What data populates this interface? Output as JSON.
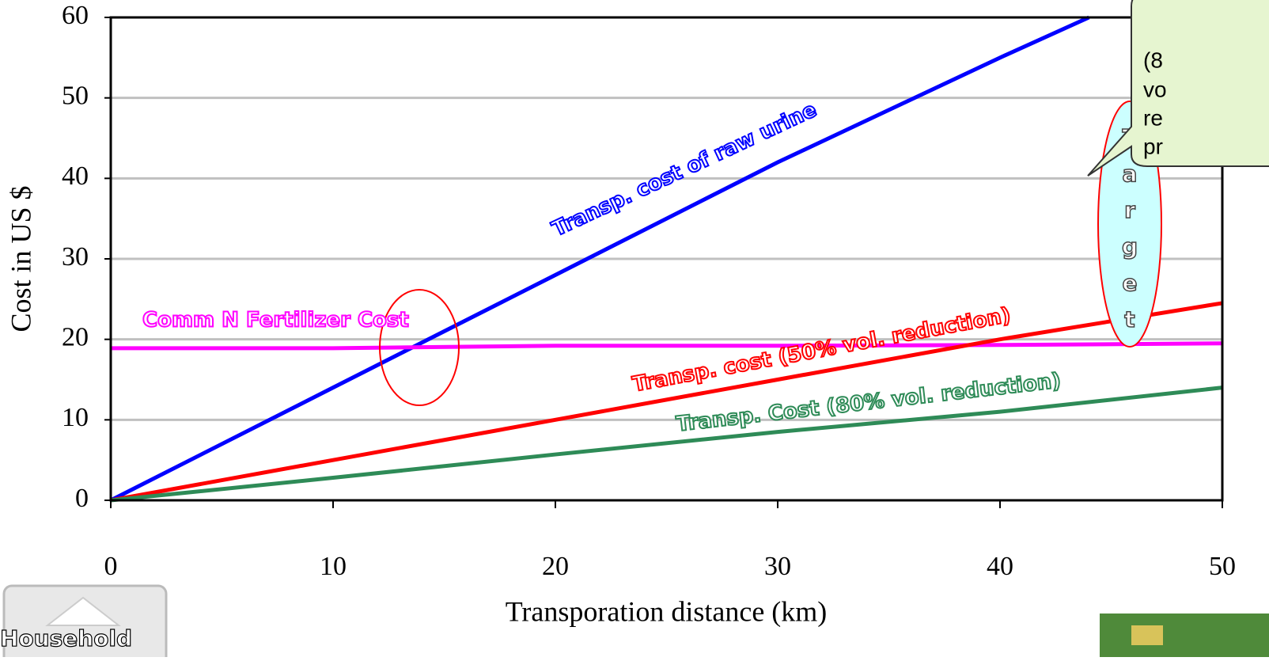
{
  "chart_data": {
    "type": "line",
    "x_label": "Transporation distance (km)",
    "y_label": "Cost in US $",
    "xlim": [
      0,
      50
    ],
    "ylim": [
      0,
      60
    ],
    "xticks": [
      0,
      10,
      20,
      30,
      40,
      50
    ],
    "yticks": [
      0,
      10,
      20,
      30,
      40,
      50,
      60
    ],
    "grid": true,
    "series": [
      {
        "name": "Transp. cost of raw urine",
        "color": "#0000ff",
        "x": [
          0,
          10,
          20,
          30,
          40,
          44
        ],
        "values": [
          0,
          14,
          28,
          42,
          55,
          60
        ]
      },
      {
        "name": "Comm N Fertilizer Cost",
        "color": "#ff00ff",
        "x": [
          0,
          10,
          20,
          30,
          40,
          50
        ],
        "values": [
          18.9,
          18.9,
          19.2,
          19.2,
          19.3,
          19.5
        ]
      },
      {
        "name": "Transp. cost (50% vol. reduction)",
        "color": "#ff0000",
        "x": [
          0,
          10,
          20,
          30,
          40,
          50
        ],
        "values": [
          0,
          5,
          10,
          15,
          20,
          24.5
        ]
      },
      {
        "name": "Transp. Cost (80% vol. reduction)",
        "color": "#2e8b57",
        "x": [
          0,
          10,
          20,
          30,
          40,
          50
        ],
        "values": [
          0,
          2.8,
          5.7,
          8.5,
          11,
          14
        ]
      }
    ],
    "annotations": {
      "target": "Target",
      "callout": [
        "(8",
        "vo",
        "re",
        "pr"
      ],
      "household": "Household"
    }
  }
}
